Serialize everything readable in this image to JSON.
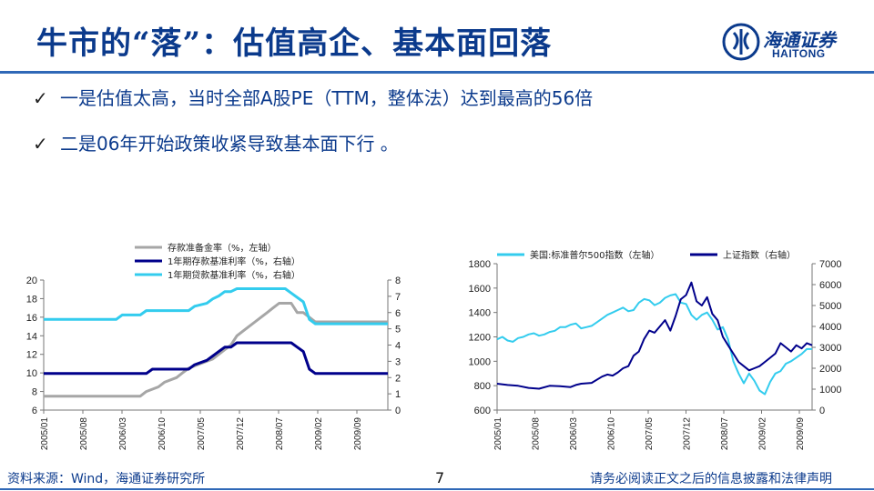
{
  "title": "牛市的“落”：估值高企、基本面回落",
  "logo": {
    "cn": "海通证券",
    "en": "HAITONG"
  },
  "bullets": [
    {
      "check": "✓",
      "text": "一是估值太高，当时全部A股PE（TTM，整体法）达到最高的56倍"
    },
    {
      "check": "✓",
      "text": "二是06年开始政策收紧导致基本面下行 。"
    }
  ],
  "footer": {
    "source": "资料来源：Wind，海通证券研究所",
    "page": "7",
    "disclaimer": "请务必阅读正文之后的信息披露和法律声明"
  },
  "colors": {
    "gray": "#a6a6a6",
    "navy": "#00008b",
    "cyan": "#33ccee",
    "brand": "#0b3a8c"
  },
  "chart_data": [
    {
      "type": "line",
      "legend": [
        "存款准备金率（%，左轴）",
        "1年期存款基准利率（%，右轴）",
        "1年期贷款基准利率（%，右轴）"
      ],
      "x_ticks": [
        "2005/01",
        "2005/08",
        "2006/03",
        "2006/10",
        "2007/05",
        "2007/12",
        "2008/07",
        "2009/02",
        "2009/09"
      ],
      "y_left_ticks": [
        "6",
        "8",
        "10",
        "12",
        "14",
        "16",
        "18",
        "20"
      ],
      "y_right_ticks": [
        "0",
        "1",
        "2",
        "3",
        "4",
        "5",
        "6",
        "7",
        "8"
      ],
      "ylim_left": [
        6,
        20
      ],
      "ylim_right": [
        0,
        8
      ],
      "x_range": [
        0,
        57
      ],
      "series": [
        {
          "name": "存款准备金率",
          "axis": "left",
          "color": "gray",
          "points": [
            [
              0,
              7.5
            ],
            [
              16,
              7.5
            ],
            [
              17,
              8
            ],
            [
              19,
              8.5
            ],
            [
              20,
              9
            ],
            [
              22,
              9.5
            ],
            [
              23,
              10
            ],
            [
              24,
              10.5
            ],
            [
              26,
              11
            ],
            [
              28,
              11.5
            ],
            [
              29,
              12
            ],
            [
              30,
              12.5
            ],
            [
              31,
              13
            ],
            [
              32,
              14
            ],
            [
              33,
              14.5
            ],
            [
              34,
              15
            ],
            [
              35,
              15.5
            ],
            [
              36,
              16
            ],
            [
              37,
              16.5
            ],
            [
              38,
              17
            ],
            [
              39,
              17.5
            ],
            [
              40,
              17.5
            ],
            [
              41,
              17.5
            ],
            [
              42,
              16.5
            ],
            [
              43,
              16.5
            ],
            [
              44,
              16
            ],
            [
              45,
              15.5
            ],
            [
              57,
              15.5
            ]
          ]
        },
        {
          "name": "1年期存款基准利率",
          "axis": "right",
          "color": "navy",
          "points": [
            [
              0,
              2.25
            ],
            [
              17,
              2.25
            ],
            [
              18,
              2.52
            ],
            [
              24,
              2.52
            ],
            [
              25,
              2.79
            ],
            [
              27,
              3.06
            ],
            [
              28,
              3.33
            ],
            [
              29,
              3.6
            ],
            [
              30,
              3.87
            ],
            [
              31,
              3.87
            ],
            [
              32,
              4.14
            ],
            [
              41,
              4.14
            ],
            [
              42,
              3.87
            ],
            [
              43,
              3.6
            ],
            [
              44,
              2.52
            ],
            [
              45,
              2.25
            ],
            [
              57,
              2.25
            ]
          ]
        },
        {
          "name": "1年期贷款基准利率",
          "axis": "right",
          "color": "cyan",
          "points": [
            [
              0,
              5.58
            ],
            [
              12,
              5.58
            ],
            [
              13,
              5.85
            ],
            [
              16,
              5.85
            ],
            [
              17,
              6.12
            ],
            [
              24,
              6.12
            ],
            [
              25,
              6.39
            ],
            [
              27,
              6.57
            ],
            [
              28,
              6.84
            ],
            [
              29,
              7.02
            ],
            [
              30,
              7.29
            ],
            [
              31,
              7.29
            ],
            [
              32,
              7.47
            ],
            [
              40,
              7.47
            ],
            [
              41,
              7.2
            ],
            [
              42,
              6.93
            ],
            [
              43,
              6.66
            ],
            [
              44,
              5.58
            ],
            [
              45,
              5.31
            ],
            [
              57,
              5.31
            ]
          ]
        }
      ]
    },
    {
      "type": "line",
      "legend": [
        "美国:标准普尔500指数（左轴）",
        "上证指数（右轴）"
      ],
      "x_ticks": [
        "2005/01",
        "2005/08",
        "2006/03",
        "2006/10",
        "2007/05",
        "2007/12",
        "2008/07",
        "2009/02",
        "2009/09"
      ],
      "y_left_ticks": [
        "600",
        "800",
        "1000",
        "1200",
        "1400",
        "1600",
        "1800"
      ],
      "y_right_ticks": [
        "0",
        "1000",
        "2000",
        "3000",
        "4000",
        "5000",
        "6000",
        "7000"
      ],
      "ylim_left": [
        600,
        1800
      ],
      "ylim_right": [
        0,
        7000
      ],
      "x_range": [
        0,
        60
      ],
      "series": [
        {
          "name": "美国:标准普尔500指数",
          "axis": "left",
          "color": "cyan",
          "points": [
            [
              0,
              1180
            ],
            [
              1,
              1200
            ],
            [
              2,
              1170
            ],
            [
              3,
              1160
            ],
            [
              4,
              1190
            ],
            [
              5,
              1200
            ],
            [
              6,
              1220
            ],
            [
              7,
              1230
            ],
            [
              8,
              1210
            ],
            [
              9,
              1220
            ],
            [
              10,
              1240
            ],
            [
              11,
              1250
            ],
            [
              12,
              1280
            ],
            [
              13,
              1280
            ],
            [
              14,
              1300
            ],
            [
              15,
              1310
            ],
            [
              16,
              1270
            ],
            [
              17,
              1280
            ],
            [
              18,
              1290
            ],
            [
              19,
              1320
            ],
            [
              20,
              1350
            ],
            [
              21,
              1380
            ],
            [
              22,
              1400
            ],
            [
              23,
              1420
            ],
            [
              24,
              1440
            ],
            [
              25,
              1410
            ],
            [
              26,
              1420
            ],
            [
              27,
              1480
            ],
            [
              28,
              1510
            ],
            [
              29,
              1500
            ],
            [
              30,
              1460
            ],
            [
              31,
              1480
            ],
            [
              32,
              1520
            ],
            [
              33,
              1540
            ],
            [
              34,
              1550
            ],
            [
              35,
              1480
            ],
            [
              36,
              1470
            ],
            [
              37,
              1380
            ],
            [
              38,
              1340
            ],
            [
              39,
              1380
            ],
            [
              40,
              1400
            ],
            [
              41,
              1340
            ],
            [
              42,
              1260
            ],
            [
              43,
              1280
            ],
            [
              44,
              1180
            ],
            [
              45,
              1000
            ],
            [
              46,
              900
            ],
            [
              47,
              820
            ],
            [
              48,
              900
            ],
            [
              49,
              840
            ],
            [
              50,
              760
            ],
            [
              51,
              730
            ],
            [
              52,
              830
            ],
            [
              53,
              900
            ],
            [
              54,
              920
            ],
            [
              55,
              980
            ],
            [
              56,
              1000
            ],
            [
              57,
              1030
            ],
            [
              58,
              1060
            ],
            [
              59,
              1100
            ],
            [
              60,
              1100
            ]
          ]
        },
        {
          "name": "上证指数",
          "axis": "right",
          "color": "navy",
          "points": [
            [
              0,
              1260
            ],
            [
              2,
              1200
            ],
            [
              4,
              1160
            ],
            [
              6,
              1060
            ],
            [
              8,
              1020
            ],
            [
              10,
              1160
            ],
            [
              12,
              1140
            ],
            [
              14,
              1100
            ],
            [
              15,
              1200
            ],
            [
              16,
              1260
            ],
            [
              18,
              1300
            ],
            [
              20,
              1600
            ],
            [
              21,
              1700
            ],
            [
              22,
              1650
            ],
            [
              23,
              1800
            ],
            [
              24,
              2000
            ],
            [
              25,
              2100
            ],
            [
              26,
              2600
            ],
            [
              27,
              2800
            ],
            [
              28,
              3400
            ],
            [
              29,
              3800
            ],
            [
              30,
              3700
            ],
            [
              31,
              4000
            ],
            [
              32,
              4300
            ],
            [
              33,
              3800
            ],
            [
              34,
              4500
            ],
            [
              35,
              5300
            ],
            [
              36,
              5500
            ],
            [
              37,
              6100
            ],
            [
              38,
              5200
            ],
            [
              39,
              5000
            ],
            [
              40,
              5400
            ],
            [
              41,
              4600
            ],
            [
              42,
              4300
            ],
            [
              43,
              3500
            ],
            [
              44,
              3100
            ],
            [
              45,
              2700
            ],
            [
              46,
              2300
            ],
            [
              47,
              2100
            ],
            [
              48,
              1900
            ],
            [
              49,
              2000
            ],
            [
              50,
              2100
            ],
            [
              51,
              2300
            ],
            [
              52,
              2500
            ],
            [
              53,
              2700
            ],
            [
              54,
              3200
            ],
            [
              55,
              3000
            ],
            [
              56,
              2800
            ],
            [
              57,
              3100
            ],
            [
              58,
              2950
            ],
            [
              59,
              3200
            ],
            [
              60,
              3100
            ]
          ]
        }
      ]
    }
  ]
}
